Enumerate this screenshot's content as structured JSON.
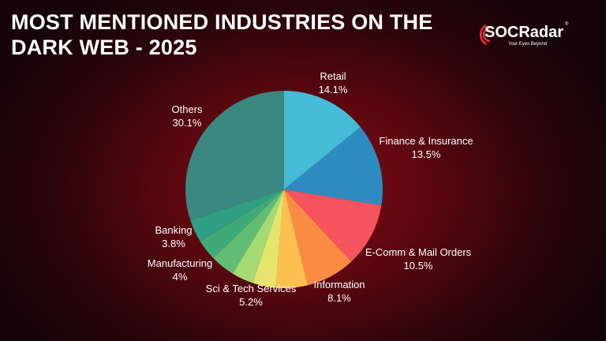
{
  "chart_data": {
    "type": "pie",
    "title": "MOST MENTIONED INDUSTRIES ON THE DARK WEB - 2025",
    "slices": [
      {
        "label": "Retail",
        "value": 14.1,
        "display": "14.1%",
        "color": "#45BCD8"
      },
      {
        "label": "Finance & Insurance",
        "value": 13.5,
        "display": "13.5%",
        "color": "#2E8BC0"
      },
      {
        "label": "E-Comm & Mail Orders",
        "value": 10.5,
        "display": "10.5%",
        "color": "#F5535E"
      },
      {
        "label": "Information",
        "value": 8.1,
        "display": "8.1%",
        "color": "#F98B43"
      },
      {
        "label": "Sci & Tech Services",
        "value": 5.2,
        "display": "5.2%",
        "color": "#FDC04E"
      },
      {
        "label": "",
        "value": 3.8,
        "display": "",
        "color": "#E5E56E"
      },
      {
        "label": "",
        "value": 3.6,
        "display": "",
        "color": "#A6DA75"
      },
      {
        "label": "Manufacturing",
        "value": 4.0,
        "display": "4%",
        "color": "#62BD74"
      },
      {
        "label": "",
        "value": 3.4,
        "display": "",
        "color": "#3FAA78"
      },
      {
        "label": "Banking",
        "value": 3.8,
        "display": "3.8%",
        "color": "#2F9E82"
      },
      {
        "label": "Others",
        "value": 30.1,
        "display": "30.1%",
        "color": "#3A8880"
      }
    ]
  },
  "logo": {
    "name": "SOCRadar",
    "tagline": "Your Eyes Beyond",
    "reg": "®"
  }
}
